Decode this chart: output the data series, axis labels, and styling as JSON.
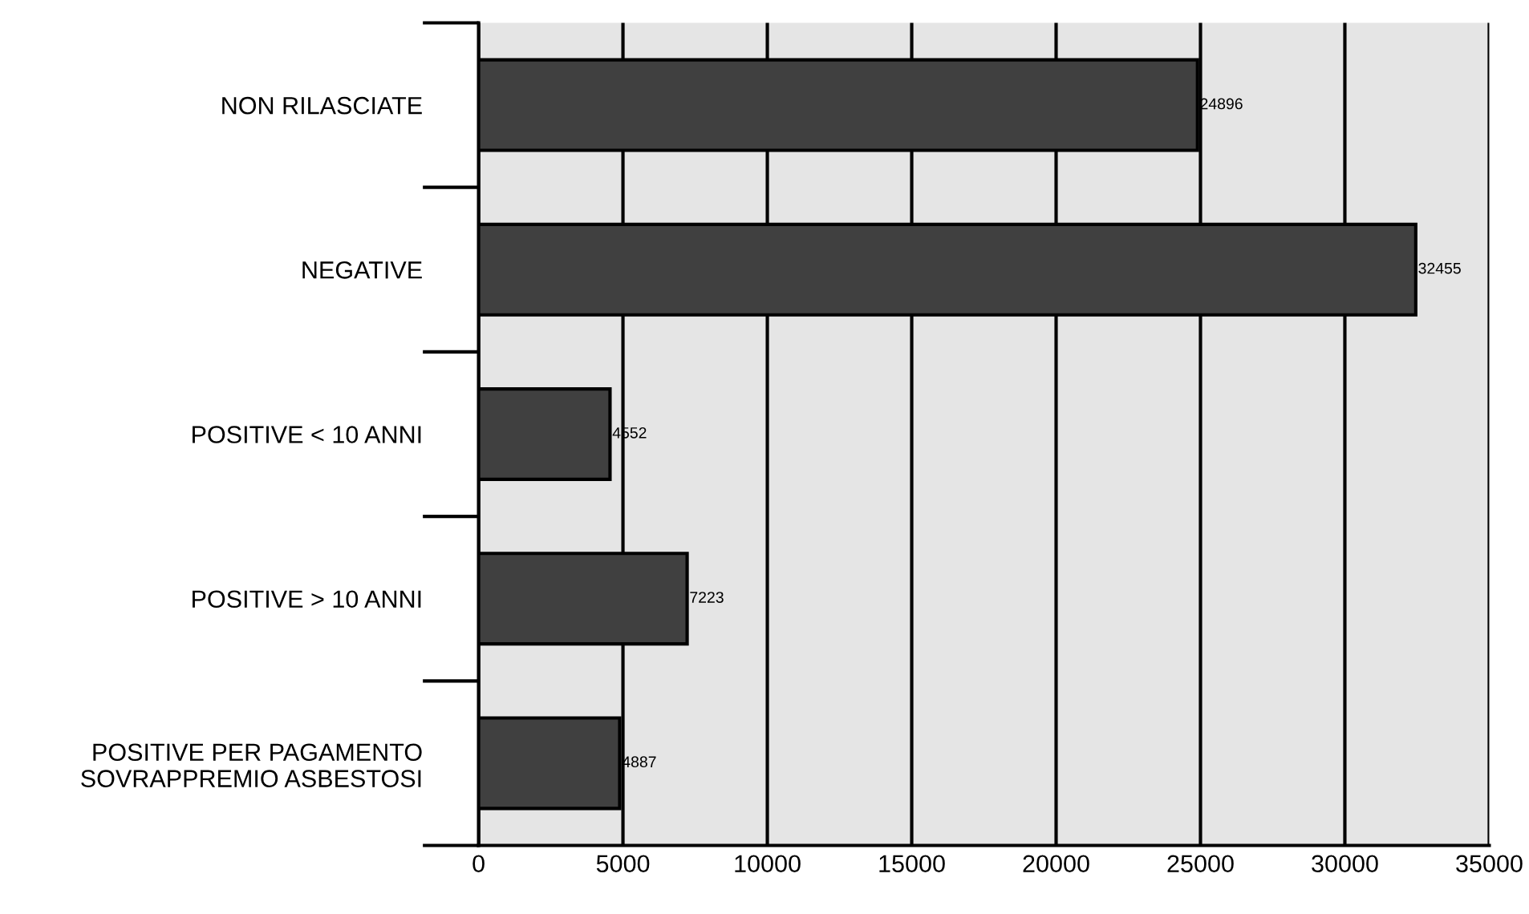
{
  "chart_data": {
    "type": "bar",
    "orientation": "horizontal",
    "categories": [
      "NON RILASCIATE",
      "NEGATIVE",
      "POSITIVE < 10 ANNI",
      "POSITIVE > 10 ANNI",
      "POSITIVE PER PAGAMENTO\nSOVRAPPREMIO ASBESTOSI"
    ],
    "values": [
      24896,
      32455,
      4552,
      7223,
      4887
    ],
    "color": "#404040",
    "xlim": [
      0,
      35000
    ],
    "xticks": [
      0,
      5000,
      10000,
      15000,
      20000,
      25000,
      30000,
      35000
    ],
    "grid": "x",
    "data_labels": true
  }
}
